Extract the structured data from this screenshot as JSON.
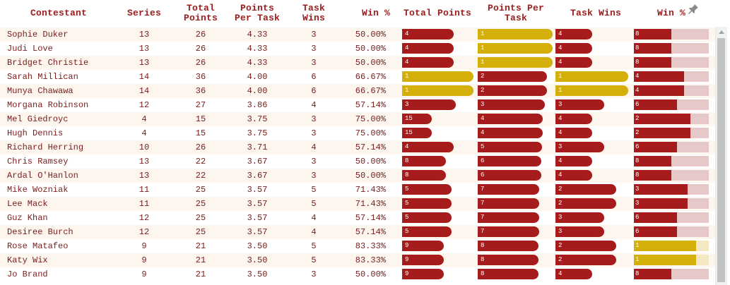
{
  "headers": {
    "contestant": "Contestant",
    "series": "Series",
    "total_points": "Total Points",
    "points_per_task": "Points Per Task",
    "task_wins": "Task Wins",
    "win_pct": "Win %",
    "total_points_bar": "Total Points",
    "points_per_task_bar": "Points Per Task",
    "task_wins_bar": "Task Wins",
    "win_pct_bar": "Win %"
  },
  "icons": {
    "pin": "pin-icon"
  },
  "colors": {
    "accent": "#a61c1c",
    "highlight": "#d4ae09",
    "track": "#e7c8c9",
    "row_alt": "#fdf6ee",
    "text": "#7a1c1c"
  },
  "rows": [
    {
      "name": "Sophie Duker",
      "series": "13",
      "total_points": "26",
      "points_per_task": "4.33",
      "task_wins": "3",
      "win_pct": "50.00%",
      "rank_tp": "4",
      "rank_ppt": "1",
      "rank_tw": "4",
      "rank_win": "8",
      "tp_value": 26,
      "ppt_value": 4.33,
      "tw_value": 3,
      "win_value": 50.0
    },
    {
      "name": "Judi Love",
      "series": "13",
      "total_points": "26",
      "points_per_task": "4.33",
      "task_wins": "3",
      "win_pct": "50.00%",
      "rank_tp": "4",
      "rank_ppt": "1",
      "rank_tw": "4",
      "rank_win": "8",
      "tp_value": 26,
      "ppt_value": 4.33,
      "tw_value": 3,
      "win_value": 50.0
    },
    {
      "name": "Bridget Christie",
      "series": "13",
      "total_points": "26",
      "points_per_task": "4.33",
      "task_wins": "3",
      "win_pct": "50.00%",
      "rank_tp": "4",
      "rank_ppt": "1",
      "rank_tw": "4",
      "rank_win": "8",
      "tp_value": 26,
      "ppt_value": 4.33,
      "tw_value": 3,
      "win_value": 50.0
    },
    {
      "name": "Sarah Millican",
      "series": "14",
      "total_points": "36",
      "points_per_task": "4.00",
      "task_wins": "6",
      "win_pct": "66.67%",
      "rank_tp": "1",
      "rank_ppt": "2",
      "rank_tw": "1",
      "rank_win": "4",
      "tp_value": 36,
      "ppt_value": 4.0,
      "tw_value": 6,
      "win_value": 66.67
    },
    {
      "name": "Munya Chawawa",
      "series": "14",
      "total_points": "36",
      "points_per_task": "4.00",
      "task_wins": "6",
      "win_pct": "66.67%",
      "rank_tp": "1",
      "rank_ppt": "2",
      "rank_tw": "1",
      "rank_win": "4",
      "tp_value": 36,
      "ppt_value": 4.0,
      "tw_value": 6,
      "win_value": 66.67
    },
    {
      "name": "Morgana Robinson",
      "series": "12",
      "total_points": "27",
      "points_per_task": "3.86",
      "task_wins": "4",
      "win_pct": "57.14%",
      "rank_tp": "3",
      "rank_ppt": "3",
      "rank_tw": "3",
      "rank_win": "6",
      "tp_value": 27,
      "ppt_value": 3.86,
      "tw_value": 4,
      "win_value": 57.14
    },
    {
      "name": "Mel Giedroyc",
      "series": "4",
      "total_points": "15",
      "points_per_task": "3.75",
      "task_wins": "3",
      "win_pct": "75.00%",
      "rank_tp": "15",
      "rank_ppt": "4",
      "rank_tw": "4",
      "rank_win": "2",
      "tp_value": 15,
      "ppt_value": 3.75,
      "tw_value": 3,
      "win_value": 75.0
    },
    {
      "name": "Hugh Dennis",
      "series": "4",
      "total_points": "15",
      "points_per_task": "3.75",
      "task_wins": "3",
      "win_pct": "75.00%",
      "rank_tp": "15",
      "rank_ppt": "4",
      "rank_tw": "4",
      "rank_win": "2",
      "tp_value": 15,
      "ppt_value": 3.75,
      "tw_value": 3,
      "win_value": 75.0
    },
    {
      "name": "Richard Herring",
      "series": "10",
      "total_points": "26",
      "points_per_task": "3.71",
      "task_wins": "4",
      "win_pct": "57.14%",
      "rank_tp": "4",
      "rank_ppt": "5",
      "rank_tw": "3",
      "rank_win": "6",
      "tp_value": 26,
      "ppt_value": 3.71,
      "tw_value": 4,
      "win_value": 57.14
    },
    {
      "name": "Chris Ramsey",
      "series": "13",
      "total_points": "22",
      "points_per_task": "3.67",
      "task_wins": "3",
      "win_pct": "50.00%",
      "rank_tp": "8",
      "rank_ppt": "6",
      "rank_tw": "4",
      "rank_win": "8",
      "tp_value": 22,
      "ppt_value": 3.67,
      "tw_value": 3,
      "win_value": 50.0
    },
    {
      "name": "Ardal O'Hanlon",
      "series": "13",
      "total_points": "22",
      "points_per_task": "3.67",
      "task_wins": "3",
      "win_pct": "50.00%",
      "rank_tp": "8",
      "rank_ppt": "6",
      "rank_tw": "4",
      "rank_win": "8",
      "tp_value": 22,
      "ppt_value": 3.67,
      "tw_value": 3,
      "win_value": 50.0
    },
    {
      "name": "Mike Wozniak",
      "series": "11",
      "total_points": "25",
      "points_per_task": "3.57",
      "task_wins": "5",
      "win_pct": "71.43%",
      "rank_tp": "5",
      "rank_ppt": "7",
      "rank_tw": "2",
      "rank_win": "3",
      "tp_value": 25,
      "ppt_value": 3.57,
      "tw_value": 5,
      "win_value": 71.43
    },
    {
      "name": "Lee Mack",
      "series": "11",
      "total_points": "25",
      "points_per_task": "3.57",
      "task_wins": "5",
      "win_pct": "71.43%",
      "rank_tp": "5",
      "rank_ppt": "7",
      "rank_tw": "2",
      "rank_win": "3",
      "tp_value": 25,
      "ppt_value": 3.57,
      "tw_value": 5,
      "win_value": 71.43
    },
    {
      "name": "Guz Khan",
      "series": "12",
      "total_points": "25",
      "points_per_task": "3.57",
      "task_wins": "4",
      "win_pct": "57.14%",
      "rank_tp": "5",
      "rank_ppt": "7",
      "rank_tw": "3",
      "rank_win": "6",
      "tp_value": 25,
      "ppt_value": 3.57,
      "tw_value": 4,
      "win_value": 57.14
    },
    {
      "name": "Desiree Burch",
      "series": "12",
      "total_points": "25",
      "points_per_task": "3.57",
      "task_wins": "4",
      "win_pct": "57.14%",
      "rank_tp": "5",
      "rank_ppt": "7",
      "rank_tw": "3",
      "rank_win": "6",
      "tp_value": 25,
      "ppt_value": 3.57,
      "tw_value": 4,
      "win_value": 57.14
    },
    {
      "name": "Rose Matafeo",
      "series": "9",
      "total_points": "21",
      "points_per_task": "3.50",
      "task_wins": "5",
      "win_pct": "83.33%",
      "rank_tp": "9",
      "rank_ppt": "8",
      "rank_tw": "2",
      "rank_win": "1",
      "tp_value": 21,
      "ppt_value": 3.5,
      "tw_value": 5,
      "win_value": 83.33
    },
    {
      "name": "Katy Wix",
      "series": "9",
      "total_points": "21",
      "points_per_task": "3.50",
      "task_wins": "5",
      "win_pct": "83.33%",
      "rank_tp": "9",
      "rank_ppt": "8",
      "rank_tw": "2",
      "rank_win": "1",
      "tp_value": 21,
      "ppt_value": 3.5,
      "tw_value": 5,
      "win_value": 83.33
    },
    {
      "name": "Jo Brand",
      "series": "9",
      "total_points": "21",
      "points_per_task": "3.50",
      "task_wins": "3",
      "win_pct": "50.00%",
      "rank_tp": "9",
      "rank_ppt": "8",
      "rank_tw": "4",
      "rank_win": "8",
      "tp_value": 21,
      "ppt_value": 3.5,
      "tw_value": 3,
      "win_value": 50.0
    }
  ]
}
